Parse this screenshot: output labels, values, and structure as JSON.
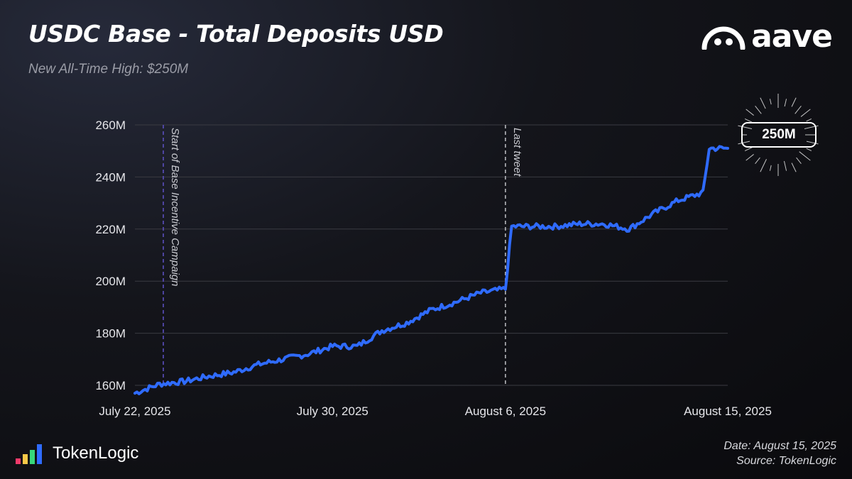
{
  "header": {
    "title": "USDC Base - Total Deposits USD",
    "subtitle": "New All-Time High: $250M"
  },
  "brand": {
    "name": "aave"
  },
  "footer": {
    "logo_text": "TokenLogic",
    "date": "Date: August 15, 2025",
    "source": "Source: TokenLogic"
  },
  "badge": {
    "label": "250M"
  },
  "colors": {
    "line": "#2f6bff",
    "grid": "#3a3b42",
    "start_marker": "#5b4fbf",
    "tweet_marker": "#b5b6bb",
    "tokenlogic_bars": [
      "#f03a6a",
      "#f7c948",
      "#37d67a",
      "#2f6bff"
    ]
  },
  "chart_data": {
    "type": "line",
    "title": "USDC Base - Total Deposits USD",
    "x_tick_labels": [
      "July 22, 2025",
      "July 30, 2025",
      "August 6, 2025",
      "August 15, 2025"
    ],
    "x_tick_dates": [
      "2025-07-22",
      "2025-07-30",
      "2025-08-06",
      "2025-08-15"
    ],
    "y_tick_labels": [
      "160M",
      "180M",
      "200M",
      "220M",
      "240M",
      "260M"
    ],
    "y_tick_values": [
      160,
      180,
      200,
      220,
      240,
      260
    ],
    "ylim": [
      160,
      260
    ],
    "xlim": [
      "2025-07-22",
      "2025-08-15"
    ],
    "grid": "horizontal",
    "series": [
      {
        "x": [
          "2025-07-22",
          "2025-07-23",
          "2025-07-24",
          "2025-07-25",
          "2025-07-26",
          "2025-07-27",
          "2025-07-28",
          "2025-07-29",
          "2025-07-30",
          "2025-07-31",
          "2025-08-01",
          "2025-08-02",
          "2025-08-03",
          "2025-08-04",
          "2025-08-05",
          "2025-08-06",
          "2025-08-07",
          "2025-08-08",
          "2025-08-09",
          "2025-08-10",
          "2025-08-11",
          "2025-08-12",
          "2025-08-13",
          "2025-08-14",
          "2025-08-15"
        ],
        "y": [
          157,
          160.5,
          161.5,
          163.5,
          165,
          168,
          170,
          172,
          175,
          175,
          181,
          184,
          189,
          192,
          195.5,
          197,
          221,
          221,
          222,
          222,
          220,
          226,
          231,
          234,
          251
        ]
      }
    ],
    "annotations": [
      {
        "text": "Start of Base Incentive Campaign",
        "x": "2025-07-23",
        "style": "dashed"
      },
      {
        "text": "Last tweet",
        "x": "2025-08-06",
        "style": "dashed"
      },
      {
        "text": "250M",
        "x": "2025-08-15",
        "y": 250
      }
    ]
  }
}
